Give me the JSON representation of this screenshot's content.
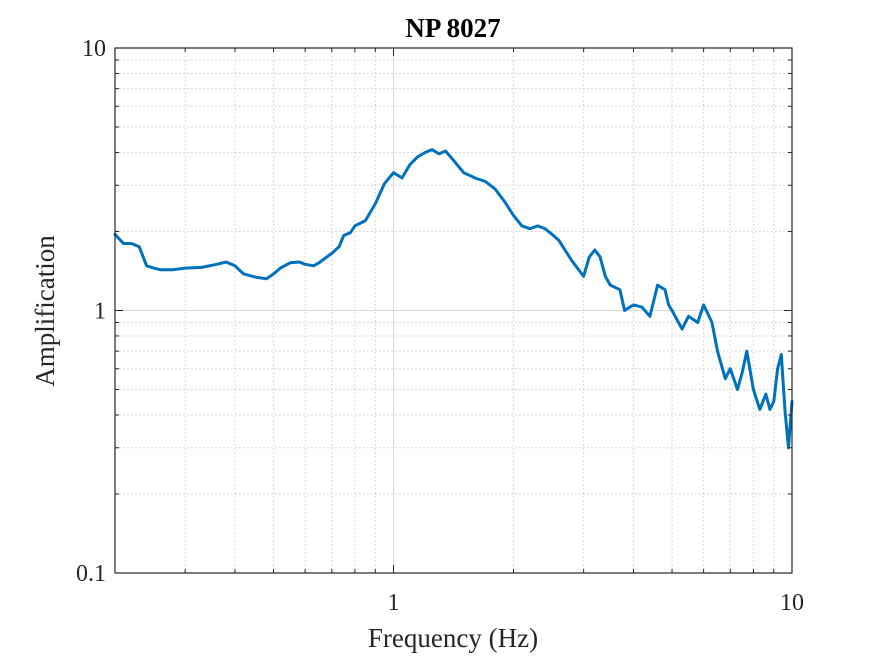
{
  "chart_data": {
    "type": "line",
    "title": "NP 8027",
    "xlabel": "Frequency (Hz)",
    "ylabel": "Amplification",
    "xscale": "log",
    "yscale": "log",
    "xlim": [
      0.2,
      10
    ],
    "ylim": [
      0.1,
      10
    ],
    "grid": true,
    "xticks": [
      {
        "value": 1,
        "label": "1"
      },
      {
        "value": 10,
        "label": "10"
      }
    ],
    "yticks": [
      {
        "value": 0.1,
        "label": "0.1"
      },
      {
        "value": 1,
        "label": "1"
      },
      {
        "value": 10,
        "label": "10"
      }
    ],
    "series": [
      {
        "color": "#0072bd",
        "x": [
          0.2,
          0.21,
          0.22,
          0.23,
          0.24,
          0.25,
          0.26,
          0.28,
          0.3,
          0.33,
          0.36,
          0.38,
          0.4,
          0.42,
          0.45,
          0.48,
          0.5,
          0.52,
          0.55,
          0.58,
          0.6,
          0.63,
          0.65,
          0.68,
          0.7,
          0.73,
          0.75,
          0.78,
          0.8,
          0.85,
          0.9,
          0.95,
          1.0,
          1.05,
          1.1,
          1.15,
          1.2,
          1.25,
          1.3,
          1.35,
          1.4,
          1.5,
          1.6,
          1.7,
          1.8,
          1.9,
          2.0,
          2.1,
          2.2,
          2.3,
          2.4,
          2.5,
          2.6,
          2.8,
          3.0,
          3.1,
          3.2,
          3.3,
          3.4,
          3.5,
          3.7,
          3.8,
          4.0,
          4.2,
          4.4,
          4.6,
          4.8,
          4.9,
          5.0,
          5.3,
          5.5,
          5.8,
          6.0,
          6.3,
          6.5,
          6.8,
          7.0,
          7.3,
          7.5,
          7.7,
          8.0,
          8.3,
          8.6,
          8.8,
          9.0,
          9.2,
          9.4,
          9.6,
          9.8,
          10.0
        ],
        "y": [
          1.95,
          1.8,
          1.8,
          1.75,
          1.48,
          1.45,
          1.43,
          1.43,
          1.45,
          1.46,
          1.5,
          1.53,
          1.48,
          1.38,
          1.34,
          1.32,
          1.38,
          1.45,
          1.52,
          1.53,
          1.5,
          1.48,
          1.52,
          1.6,
          1.65,
          1.75,
          1.93,
          1.98,
          2.1,
          2.2,
          2.55,
          3.05,
          3.35,
          3.2,
          3.6,
          3.85,
          4.0,
          4.1,
          3.95,
          4.05,
          3.8,
          3.35,
          3.2,
          3.1,
          2.9,
          2.6,
          2.3,
          2.1,
          2.05,
          2.1,
          2.05,
          1.95,
          1.85,
          1.55,
          1.35,
          1.6,
          1.7,
          1.6,
          1.35,
          1.25,
          1.2,
          1.0,
          1.05,
          1.03,
          0.95,
          1.25,
          1.2,
          1.05,
          1.0,
          0.85,
          0.95,
          0.9,
          1.05,
          0.9,
          0.7,
          0.55,
          0.6,
          0.5,
          0.58,
          0.7,
          0.5,
          0.42,
          0.48,
          0.42,
          0.45,
          0.6,
          0.68,
          0.42,
          0.3,
          0.45
        ]
      }
    ]
  }
}
